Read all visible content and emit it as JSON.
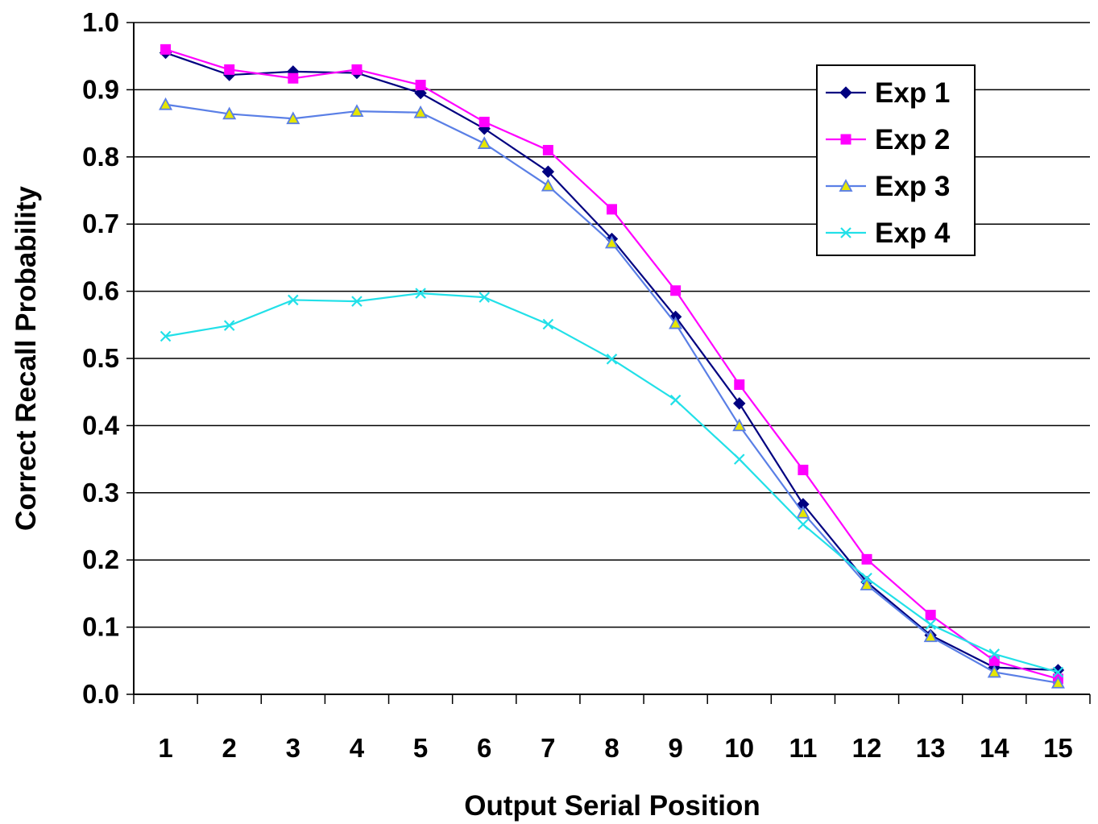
{
  "chart_data": {
    "type": "line",
    "title": "",
    "xlabel": "Output Serial Position",
    "ylabel": "Correct Recall Probability",
    "categories": [
      "1",
      "2",
      "3",
      "4",
      "5",
      "6",
      "7",
      "8",
      "9",
      "10",
      "11",
      "12",
      "13",
      "14",
      "15"
    ],
    "ylim": [
      0.0,
      1.0
    ],
    "y_ticks": [
      "0.0",
      "0.1",
      "0.2",
      "0.3",
      "0.4",
      "0.5",
      "0.6",
      "0.7",
      "0.8",
      "0.9",
      "1.0"
    ],
    "grid": "horizontal",
    "legend_position": "top-right",
    "series": [
      {
        "name": "Exp 1",
        "color": "#000080",
        "marker": "diamond",
        "values": [
          0.955,
          0.922,
          0.927,
          0.925,
          0.895,
          0.842,
          0.778,
          0.678,
          0.562,
          0.433,
          0.283,
          0.167,
          0.088,
          0.04,
          0.036
        ]
      },
      {
        "name": "Exp 2",
        "color": "#ff00ff",
        "marker": "square",
        "values": [
          0.96,
          0.93,
          0.917,
          0.93,
          0.907,
          0.852,
          0.81,
          0.722,
          0.601,
          0.461,
          0.334,
          0.201,
          0.118,
          0.05,
          0.023
        ]
      },
      {
        "name": "Exp 3",
        "color": "#5a7fe6",
        "marker": "triangle",
        "values": [
          0.878,
          0.864,
          0.857,
          0.868,
          0.866,
          0.82,
          0.757,
          0.672,
          0.552,
          0.4,
          0.27,
          0.163,
          0.086,
          0.033,
          0.017
        ]
      },
      {
        "name": "Exp 4",
        "color": "#22e0e8",
        "marker": "x",
        "values": [
          0.533,
          0.549,
          0.587,
          0.585,
          0.597,
          0.591,
          0.551,
          0.499,
          0.438,
          0.35,
          0.253,
          0.173,
          0.104,
          0.06,
          0.033
        ]
      }
    ]
  }
}
